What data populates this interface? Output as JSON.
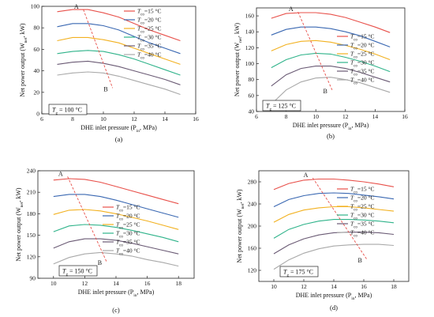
{
  "figure": {
    "panels": [
      "(a)",
      "(b)",
      "(c)",
      "(d)"
    ],
    "xlabel": "DHE inlet pressure (P",
    "xlabel_sub": "in",
    "xlabel_tail": ", MPa)",
    "ylabel": "Net power output (W",
    "ylabel_sub": "net",
    "ylabel_tail": ", kW)",
    "legend_labels": [
      "T=15 °C",
      "T=20 °C",
      "T=25 °C",
      "T=30 °C",
      "T=35 °C",
      "T=40 °C"
    ],
    "legend_prefix": "T",
    "legend_sub": "co",
    "legend_values": [
      "=15 °C",
      "=20 °C",
      "=25 °C",
      "=30 °C",
      "=35 °C",
      "=40 °C"
    ],
    "series_colors": [
      "#e8504a",
      "#3a68b2",
      "#f2b120",
      "#2fb38a",
      "#6a5a74",
      "#a9a9a9"
    ],
    "point_a": "A",
    "point_b": "B"
  },
  "chart_data": [
    {
      "type": "line",
      "panel": "(a)",
      "annotation": {
        "prefix": "T",
        "sub": "g",
        "value": " = 100 °C"
      },
      "x": [
        7,
        8,
        9,
        10,
        11,
        12,
        13,
        14,
        15
      ],
      "xlim": [
        6,
        16
      ],
      "xticks": [
        6,
        8,
        10,
        12,
        14,
        16
      ],
      "ylim": [
        0,
        100
      ],
      "yticks": [
        0,
        20,
        40,
        60,
        80,
        100
      ],
      "series": [
        {
          "name": "T=15 °C",
          "values": [
            95,
            97,
            97,
            94,
            90,
            84,
            78,
            73,
            68
          ]
        },
        {
          "name": "T=20 °C",
          "values": [
            81,
            84,
            84,
            82,
            78,
            72,
            66,
            61,
            56
          ]
        },
        {
          "name": "T=25 °C",
          "values": [
            68,
            71,
            71,
            69,
            66,
            61,
            56,
            51,
            46
          ]
        },
        {
          "name": "T=30 °C",
          "values": [
            56,
            58,
            59,
            58,
            55,
            51,
            46,
            41,
            36
          ]
        },
        {
          "name": "T=35 °C",
          "values": [
            46,
            48,
            49,
            47,
            44,
            40,
            36,
            32,
            27
          ]
        },
        {
          "name": "T=40 °C",
          "values": [
            36,
            38,
            39,
            38,
            35,
            31,
            27,
            23,
            18
          ]
        }
      ],
      "trend_line": {
        "from": [
          8.7,
          97
        ],
        "to": [
          10.6,
          24
        ]
      }
    },
    {
      "type": "line",
      "panel": "(b)",
      "annotation": {
        "prefix": "T",
        "sub": "g",
        "value": " = 125 °C"
      },
      "x": [
        7,
        8,
        9,
        10,
        11,
        12,
        13,
        14,
        15
      ],
      "xlim": [
        6,
        16
      ],
      "xticks": [
        6,
        8,
        10,
        12,
        14,
        16
      ],
      "ylim": [
        40,
        170
      ],
      "yticks": [
        40,
        60,
        80,
        100,
        120,
        140,
        160
      ],
      "series": [
        {
          "name": "T=15 °C",
          "values": [
            157,
            163,
            164,
            164,
            162,
            158,
            152,
            146,
            139
          ]
        },
        {
          "name": "T=20 °C",
          "values": [
            136,
            143,
            146,
            146,
            144,
            140,
            135,
            128,
            121
          ]
        },
        {
          "name": "T=25 °C",
          "values": [
            116,
            124,
            128,
            129,
            127,
            123,
            118,
            112,
            105
          ]
        },
        {
          "name": "T=30 °C",
          "values": [
            95,
            105,
            111,
            113,
            112,
            108,
            103,
            97,
            90
          ]
        },
        {
          "name": "T=35 °C",
          "values": [
            72,
            86,
            94,
            97,
            97,
            94,
            89,
            83,
            77
          ]
        },
        {
          "name": "T=40 °C",
          "values": [
            49,
            67,
            77,
            82,
            83,
            80,
            76,
            70,
            64
          ]
        }
      ],
      "trend_line": {
        "from": [
          8.8,
          165
        ],
        "to": [
          11.1,
          67
        ]
      }
    },
    {
      "type": "line",
      "panel": "(c)",
      "annotation": {
        "prefix": "T",
        "sub": "g",
        "value": " = 150 °C"
      },
      "x": [
        10,
        11,
        12,
        13,
        14,
        15,
        16,
        17,
        18
      ],
      "xlim": [
        9,
        19
      ],
      "xticks": [
        10,
        12,
        14,
        16,
        18
      ],
      "ylim": [
        90,
        240
      ],
      "yticks": [
        90,
        120,
        150,
        180,
        210,
        240
      ],
      "series": [
        {
          "name": "T=15 °C",
          "values": [
            227,
            229,
            228,
            224,
            218,
            212,
            206,
            200,
            194
          ]
        },
        {
          "name": "T=20 °C",
          "values": [
            204,
            207,
            207,
            204,
            199,
            193,
            187,
            181,
            175
          ]
        },
        {
          "name": "T=25 °C",
          "values": [
            179,
            185,
            186,
            184,
            180,
            175,
            170,
            164,
            158
          ]
        },
        {
          "name": "T=30 °C",
          "values": [
            155,
            163,
            165,
            164,
            161,
            157,
            152,
            147,
            141
          ]
        },
        {
          "name": "T=35 °C",
          "values": [
            132,
            141,
            145,
            145,
            143,
            139,
            134,
            129,
            124
          ]
        },
        {
          "name": "T=40 °C",
          "values": [
            110,
            119,
            124,
            126,
            124,
            121,
            116,
            112,
            107
          ]
        }
      ],
      "trend_line": {
        "from": [
          10.9,
          232
        ],
        "to": [
          13.4,
          113
        ]
      }
    },
    {
      "type": "line",
      "panel": "(d)",
      "annotation": {
        "prefix": "T",
        "sub": "g",
        "value": " = 175 °C"
      },
      "x": [
        10,
        11,
        12,
        13,
        14,
        15,
        16,
        17,
        18
      ],
      "xlim": [
        9,
        19
      ],
      "xticks": [
        10,
        12,
        14,
        16,
        18
      ],
      "ylim": [
        100,
        300
      ],
      "yticks": [
        120,
        160,
        200,
        240,
        280
      ],
      "series": [
        {
          "name": "T=15 °C",
          "values": [
            266,
            277,
            283,
            285,
            285,
            283,
            280,
            276,
            271
          ]
        },
        {
          "name": "T=20 °C",
          "values": [
            235,
            248,
            255,
            259,
            260,
            259,
            256,
            253,
            249
          ]
        },
        {
          "name": "T=25 °C",
          "values": [
            207,
            221,
            229,
            233,
            235,
            235,
            233,
            230,
            227
          ]
        },
        {
          "name": "T=30 °C",
          "values": [
            178,
            194,
            203,
            209,
            212,
            212,
            211,
            209,
            206
          ]
        },
        {
          "name": "T=35 °C",
          "values": [
            150,
            166,
            177,
            184,
            188,
            189,
            189,
            188,
            185
          ]
        },
        {
          "name": "T=40 °C",
          "values": [
            122,
            139,
            151,
            159,
            164,
            166,
            167,
            167,
            165
          ]
        }
      ],
      "trend_line": {
        "from": [
          12.6,
          287
        ],
        "to": [
          16.2,
          140
        ]
      }
    }
  ]
}
